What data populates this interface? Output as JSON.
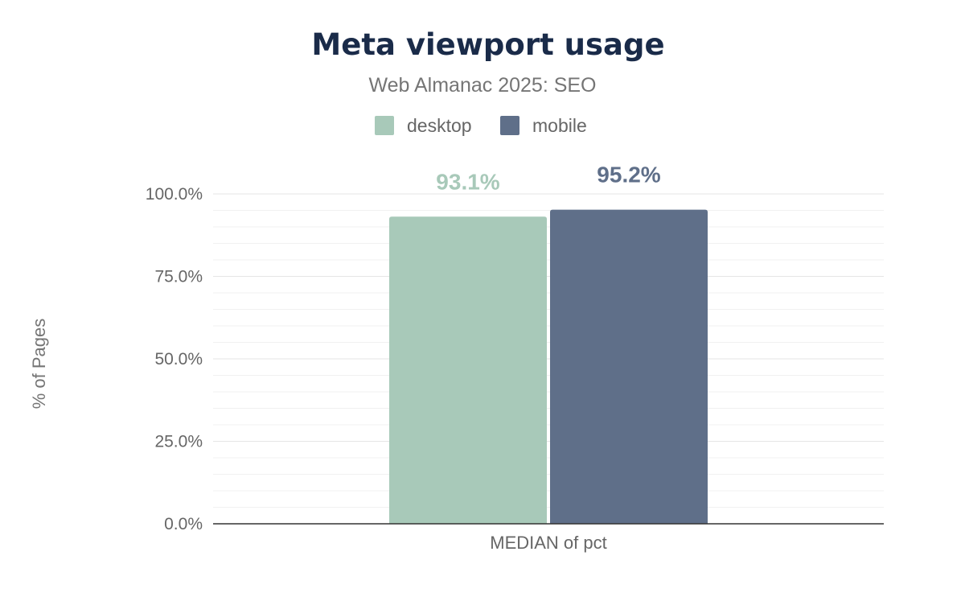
{
  "chart_data": {
    "type": "bar",
    "title": "Meta viewport usage",
    "subtitle": "Web Almanac 2025: SEO",
    "ylabel": "% of Pages",
    "categories": [
      "MEDIAN of pct"
    ],
    "series": [
      {
        "name": "desktop",
        "values": [
          93.1
        ],
        "color": "#a8c9b9",
        "label": "93.1%"
      },
      {
        "name": "mobile",
        "values": [
          95.2
        ],
        "color": "#5f6f89",
        "label": "95.2%"
      }
    ],
    "ylim": [
      0,
      100
    ],
    "yticks": [
      {
        "value": 0,
        "label": "0.0%"
      },
      {
        "value": 25,
        "label": "25.0%"
      },
      {
        "value": 50,
        "label": "50.0%"
      },
      {
        "value": 75,
        "label": "75.0%"
      },
      {
        "value": 100,
        "label": "100.0%"
      }
    ],
    "minor_grid_step": 5,
    "grid": true,
    "legend_position": "top-center"
  }
}
